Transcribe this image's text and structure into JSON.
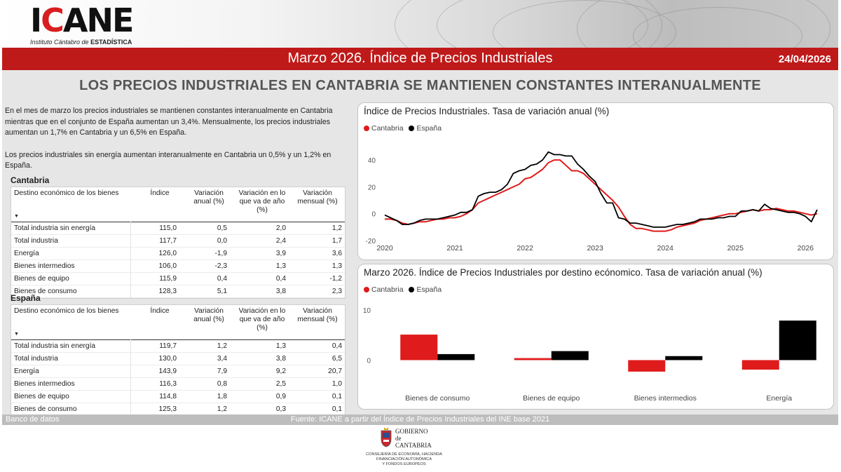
{
  "logo": {
    "name_black_1": "I",
    "name_red": "C",
    "name_black_2": "ANE",
    "subtitle_prefix": "Instituto Cántabro de",
    "subtitle_bold": "ESTADÍSTICA"
  },
  "header": {
    "title": "Marzo 2026. Índice de Precios Industriales",
    "date": "24/04/2026"
  },
  "headline": "LOS PRECIOS INDUSTRIALES EN CANTABRIA SE MANTIENEN CONSTANTES INTERANUALMENTE",
  "intro": {
    "p1": "En el mes de marzo los precios industriales se mantienen constantes interanualmente en Cantabria mientras que en el conjunto de España aumentan un 3,4%. Mensualmente, los precios industriales aumentan un 1,7% en Cantabria y un 6,5% en España.",
    "p2": "Los precios industriales sin energía aumentan interanualmente en Cantabria un 0,5% y un 1,2% en España."
  },
  "columns": {
    "c0": "Destino económico de los bienes",
    "c1": "Índice",
    "c2": "Variación anual (%)",
    "c3": "Variación en lo que va de año (%)",
    "c4": "Variación mensual (%)"
  },
  "tables": {
    "cantabria": {
      "title": "Cantabria",
      "rows": [
        [
          "Total industria sin energía",
          "115,0",
          "0,5",
          "2,0",
          "1,2"
        ],
        [
          "Total industria",
          "117,7",
          "0,0",
          "2,4",
          "1,7"
        ],
        [
          "Energía",
          "126,0",
          "-1,9",
          "3,9",
          "3,6"
        ],
        [
          "Bienes intermedios",
          "106,0",
          "-2,3",
          "1,3",
          "1,3"
        ],
        [
          "Bienes de equipo",
          "115,9",
          "0,4",
          "0,4",
          "-1,2"
        ],
        [
          "Bienes de consumo",
          "128,3",
          "5,1",
          "3,8",
          "2,3"
        ]
      ]
    },
    "espana": {
      "title": "España",
      "rows": [
        [
          "Total industria sin energía",
          "119,7",
          "1,2",
          "1,3",
          "0,4"
        ],
        [
          "Total industria",
          "130,0",
          "3,4",
          "3,8",
          "6,5"
        ],
        [
          "Energía",
          "143,9",
          "7,9",
          "9,2",
          "20,7"
        ],
        [
          "Bienes intermedios",
          "116,3",
          "0,8",
          "2,5",
          "1,0"
        ],
        [
          "Bienes de equipo",
          "114,8",
          "1,8",
          "0,9",
          "0,1"
        ],
        [
          "Bienes de consumo",
          "125,3",
          "1,2",
          "0,3",
          "0,1"
        ]
      ]
    }
  },
  "colors": {
    "cantabria": "#e01b1b",
    "espana": "#000000",
    "title_bar": "#bf1a1a"
  },
  "chart_data": [
    {
      "type": "line",
      "title": "Índice de Precios Industriales. Tasa de variación anual (%)",
      "legend_position": "top-left",
      "ylim": [
        -20,
        50
      ],
      "yticks": [
        -20,
        0,
        20,
        40
      ],
      "xticks": [
        "2020",
        "2021",
        "2022",
        "2023",
        "2024",
        "2025",
        "2026"
      ],
      "xlim": [
        "2020-01",
        "2026-03"
      ],
      "x": [
        "2020-01",
        "2020-02",
        "2020-03",
        "2020-04",
        "2020-05",
        "2020-06",
        "2020-07",
        "2020-08",
        "2020-09",
        "2020-10",
        "2020-11",
        "2020-12",
        "2021-01",
        "2021-02",
        "2021-03",
        "2021-04",
        "2021-05",
        "2021-06",
        "2021-07",
        "2021-08",
        "2021-09",
        "2021-10",
        "2021-11",
        "2021-12",
        "2022-01",
        "2022-02",
        "2022-03",
        "2022-04",
        "2022-05",
        "2022-06",
        "2022-07",
        "2022-08",
        "2022-09",
        "2022-10",
        "2022-11",
        "2022-12",
        "2023-01",
        "2023-02",
        "2023-03",
        "2023-04",
        "2023-05",
        "2023-06",
        "2023-07",
        "2023-08",
        "2023-09",
        "2023-10",
        "2023-11",
        "2023-12",
        "2024-01",
        "2024-02",
        "2024-03",
        "2024-04",
        "2024-05",
        "2024-06",
        "2024-07",
        "2024-08",
        "2024-09",
        "2024-10",
        "2024-11",
        "2024-12",
        "2025-01",
        "2025-02",
        "2025-03",
        "2025-04",
        "2025-05",
        "2025-06",
        "2025-07",
        "2025-08",
        "2025-09",
        "2025-10",
        "2025-11",
        "2025-12",
        "2026-01",
        "2026-02",
        "2026-03"
      ],
      "series": [
        {
          "name": "Cantabria",
          "values": [
            -4,
            -4,
            -5,
            -7,
            -8,
            -7,
            -6,
            -6,
            -5,
            -4,
            -4,
            -3,
            -3,
            -2,
            0,
            3,
            8,
            10,
            12,
            14,
            16,
            18,
            20,
            22,
            26,
            27,
            30,
            33,
            38,
            40,
            40,
            36,
            32,
            32,
            30,
            26,
            22,
            18,
            14,
            10,
            5,
            -2,
            -8,
            -11,
            -11,
            -12,
            -13,
            -13,
            -13,
            -12,
            -10,
            -9,
            -8,
            -7,
            -5,
            -4,
            -3,
            -2,
            -1,
            0,
            0,
            1,
            2,
            3,
            2,
            3,
            3,
            4,
            3,
            2,
            2,
            1,
            0,
            -1,
            0
          ]
        },
        {
          "name": "España",
          "values": [
            -1,
            -3,
            -5,
            -8,
            -8,
            -7,
            -5,
            -4,
            -4,
            -4,
            -3,
            -2,
            -1,
            1,
            1,
            3,
            13,
            15,
            16,
            16,
            18,
            22,
            30,
            32,
            33,
            36,
            37,
            40,
            46,
            44,
            44,
            43,
            43,
            37,
            33,
            28,
            24,
            15,
            8,
            8,
            -3,
            -4,
            -7,
            -7,
            -8,
            -9,
            -10,
            -10,
            -10,
            -9,
            -8,
            -8,
            -7,
            -6,
            -4,
            -4,
            -4,
            -3,
            -3,
            -2,
            -2,
            2,
            2,
            3,
            2,
            7,
            4,
            3,
            2,
            1,
            1,
            0,
            -2,
            -6,
            3
          ]
        }
      ]
    },
    {
      "type": "bar",
      "title": "Marzo 2026. Índice de Precios Industriales por destino ecónomico. Tasa de variación anual (%)",
      "legend_position": "top-left",
      "ylim": [
        -4,
        11
      ],
      "yticks": [
        0,
        10
      ],
      "categories": [
        "Bienes de consumo",
        "Bienes de equipo",
        "Bienes intermedios",
        "Energía"
      ],
      "series": [
        {
          "name": "Cantabria",
          "values": [
            5.1,
            0.4,
            -2.3,
            -1.9
          ]
        },
        {
          "name": "España",
          "values": [
            1.2,
            1.8,
            0.8,
            7.9
          ]
        }
      ]
    }
  ],
  "footer": {
    "left": "Banco de datos",
    "source": "Fuente: ICANE a partir del Índice de Precios Industriales del INE base 2021"
  },
  "government": {
    "line1": "GOBIERNO",
    "line2": "de",
    "line3": "CANTABRIA",
    "sub1": "CONSEJERÍA DE ECONOMÍA, HACIENDA",
    "sub2": "FINANCIACIÓN AUTONÓMICA",
    "sub3": "Y FONDOS EUROPEOS"
  }
}
